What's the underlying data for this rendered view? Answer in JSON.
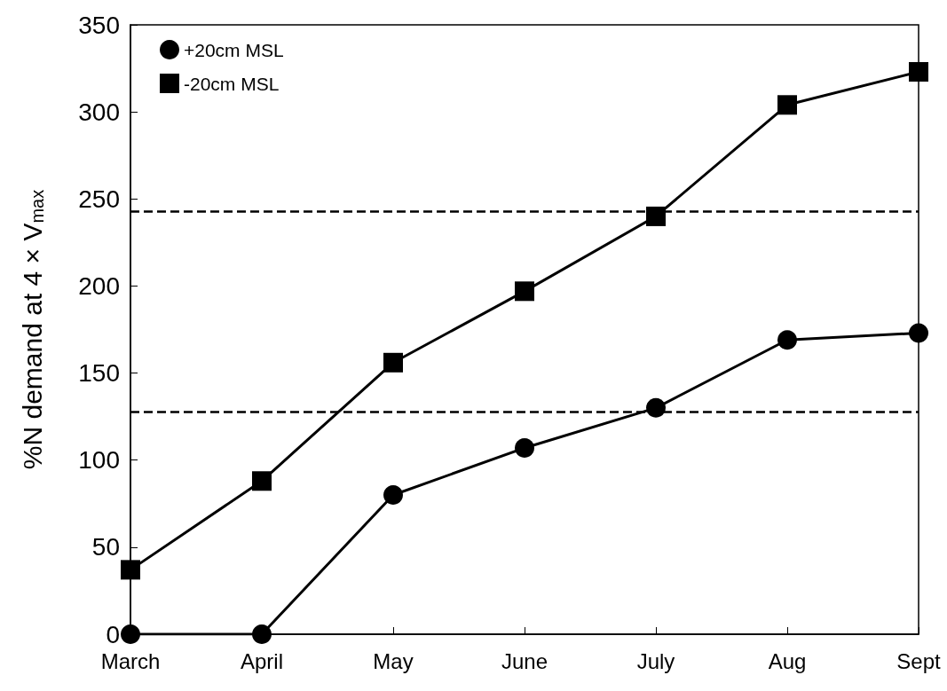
{
  "chart_data": {
    "type": "line",
    "ylabel": "%N demand at 4 × V$_{max}$",
    "categories": [
      "March",
      "April",
      "May",
      "June",
      "July",
      "Aug",
      "Sept"
    ],
    "series": [
      {
        "name": "+20cm MSL",
        "color": "#000000",
        "marker": "circle",
        "values": [
          0,
          0,
          80,
          107,
          130,
          169,
          173
        ]
      },
      {
        "name": "-20cm MSL",
        "color": "#000000",
        "marker": "square",
        "values": [
          37,
          88,
          156,
          197,
          240,
          304,
          323
        ]
      }
    ],
    "ylim": [
      0,
      350
    ],
    "yticks": [
      0,
      50,
      100,
      150,
      200,
      250,
      300,
      350
    ],
    "grid": false,
    "legend": "top left",
    "line_style": "solid",
    "ref_lines": [
      {
        "axis": "y",
        "value": 243,
        "color": "#000000",
        "line_style": "dashed"
      },
      {
        "axis": "y",
        "value": 128,
        "color": "#000000",
        "line_style": "dashed"
      }
    ]
  }
}
